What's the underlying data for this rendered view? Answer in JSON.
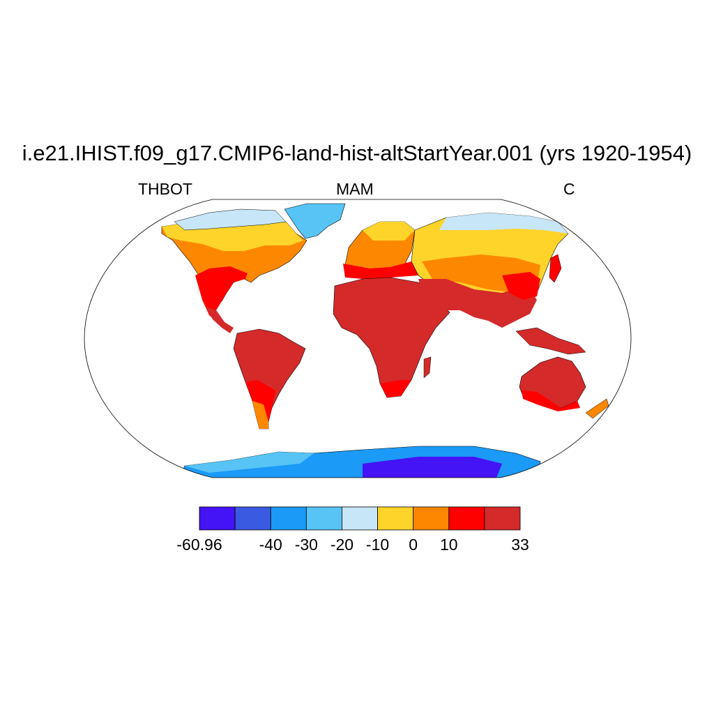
{
  "title": "i.e21.IHIST.f09_g17.CMIP6-land-hist-altStartYear.001 (yrs 1920-1954)",
  "left_label": "THBOT",
  "center_label": "MAM",
  "right_label": "C",
  "colorbar": {
    "colors": [
      "#4413f6",
      "#3b5ae2",
      "#1b9af7",
      "#57c4f5",
      "#c7e6f7",
      "#fed42a",
      "#fe8700",
      "#fe0000",
      "#d52a2a"
    ],
    "tick_labels": [
      "-60.96",
      "",
      "-40",
      "-30",
      "-20",
      "-10",
      "0",
      "10",
      "",
      "33"
    ]
  }
}
